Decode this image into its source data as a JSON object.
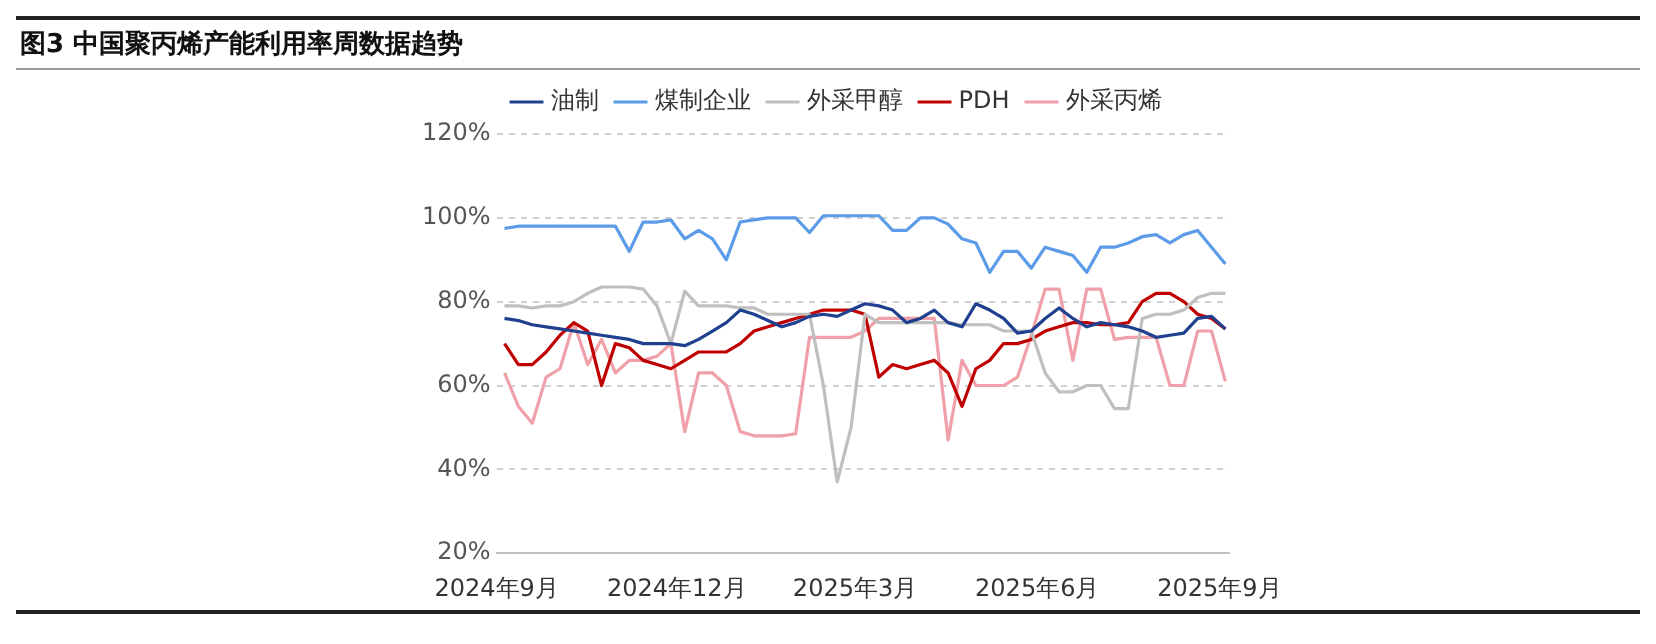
{
  "chart_data": {
    "type": "line",
    "title": "图3 中国聚丙烯产能利用率周数据趋势",
    "x": [
      "2024-09-05",
      "2024-09-12",
      "2024-09-19",
      "2024-09-26",
      "2024-10-03",
      "2024-10-10",
      "2024-10-17",
      "2024-10-24",
      "2024-10-31",
      "2024-11-07",
      "2024-11-14",
      "2024-11-21",
      "2024-11-28",
      "2024-12-05",
      "2024-12-12",
      "2024-12-19",
      "2024-12-26",
      "2025-01-02",
      "2025-01-09",
      "2025-01-16",
      "2025-01-23",
      "2025-01-30",
      "2025-02-06",
      "2025-02-13",
      "2025-02-20",
      "2025-02-27",
      "2025-03-06",
      "2025-03-13",
      "2025-03-20",
      "2025-03-27",
      "2025-04-03",
      "2025-04-10",
      "2025-04-17",
      "2025-04-24",
      "2025-05-01",
      "2025-05-08",
      "2025-05-15",
      "2025-05-22",
      "2025-05-29",
      "2025-06-05",
      "2025-06-12",
      "2025-06-19",
      "2025-06-26",
      "2025-07-03",
      "2025-07-10",
      "2025-07-17",
      "2025-07-24",
      "2025-07-31",
      "2025-08-07",
      "2025-08-14",
      "2025-08-21",
      "2025-08-28",
      "2025-09-04"
    ],
    "series": [
      {
        "name": "油制",
        "color": "#1f3f8f",
        "values": [
          76,
          75.5,
          74.5,
          74,
          73.5,
          73,
          72.5,
          72,
          71.5,
          71,
          70,
          70,
          70,
          69.5,
          71,
          73,
          75,
          78,
          77,
          75.5,
          74,
          75,
          76.5,
          77,
          76.5,
          78,
          79.5,
          79,
          78,
          75,
          76,
          78,
          75,
          74,
          79.5,
          78,
          76,
          72.5,
          73,
          76,
          78.5,
          76,
          74,
          75,
          74.5,
          74,
          73,
          71.5,
          72,
          72.5,
          76,
          76.5,
          73.5
        ]
      },
      {
        "name": "煤制企业",
        "color": "#5b9be8",
        "values": [
          97.5,
          98,
          98,
          98,
          98,
          98,
          98,
          98,
          98,
          92,
          99,
          99,
          99.5,
          95,
          97,
          95,
          90,
          99,
          99.5,
          100,
          100,
          100,
          96.5,
          100.5,
          100.5,
          100.5,
          100.5,
          100.5,
          97,
          97,
          100,
          100,
          98.5,
          95,
          94,
          87,
          92,
          92,
          88,
          93,
          92,
          91,
          87,
          93,
          93,
          94,
          95.5,
          96,
          94,
          96,
          97,
          93,
          89
        ]
      },
      {
        "name": "外采甲醇",
        "color": "#bfbfbf",
        "values": [
          79,
          79,
          78.5,
          79,
          79,
          80,
          82,
          83.5,
          83.5,
          83.5,
          83,
          79,
          70,
          82.5,
          79,
          79,
          79,
          78.5,
          78.5,
          77,
          77,
          77,
          77,
          60,
          37,
          50,
          77,
          75,
          75,
          75,
          75,
          75,
          75,
          74.5,
          74.5,
          74.5,
          73,
          73,
          73,
          63,
          58.5,
          58.5,
          60,
          60,
          54.5,
          54.5,
          76,
          77,
          77,
          78,
          81,
          82,
          82
        ]
      },
      {
        "name": "PDH",
        "color": "#c00000",
        "values": [
          70,
          65,
          65,
          68,
          72,
          75,
          73,
          60,
          70,
          69,
          66,
          65,
          64,
          66,
          68,
          68,
          68,
          70,
          73,
          74,
          75,
          76,
          77,
          78,
          78,
          78,
          77,
          62,
          65,
          64,
          65,
          66,
          63,
          55,
          64,
          66,
          70,
          70,
          71,
          73,
          74,
          75,
          75,
          74.5,
          74.5,
          75,
          80,
          82,
          82,
          80,
          77,
          76,
          73.5
        ]
      },
      {
        "name": "外采丙烯",
        "color": "#f0a0a8",
        "values": [
          63,
          55,
          51,
          62,
          64,
          75,
          65,
          71,
          63,
          66,
          66,
          67,
          70,
          49,
          63,
          63,
          60,
          49,
          48,
          48,
          48,
          48.5,
          71.5,
          71.5,
          71.5,
          71.5,
          73,
          76,
          76,
          76,
          76,
          76,
          47,
          66,
          60,
          60,
          60,
          62,
          72,
          83,
          83,
          66,
          83,
          83,
          71,
          71.5,
          71.5,
          71.5,
          60,
          60,
          73,
          73,
          61
        ]
      }
    ],
    "xlim": [
      "2024-09-01",
      "2025-09-06"
    ],
    "xticks": [
      {
        "value": "2024-09-01",
        "label": "2024年9月"
      },
      {
        "value": "2024-12-01",
        "label": "2024年12月"
      },
      {
        "value": "2025-03-01",
        "label": "2025年3月"
      },
      {
        "value": "2025-06-01",
        "label": "2025年6月"
      },
      {
        "value": "2025-09-01",
        "label": "2025年9月"
      }
    ],
    "ylim": [
      20,
      120
    ],
    "yticks": [
      {
        "value": 20,
        "label": "20%"
      },
      {
        "value": 40,
        "label": "40%"
      },
      {
        "value": 60,
        "label": "60%"
      },
      {
        "value": 80,
        "label": "80%"
      },
      {
        "value": 100,
        "label": "100%"
      },
      {
        "value": 120,
        "label": "120%"
      }
    ],
    "grid": "y",
    "legend": "top",
    "marker": "none",
    "line_style": "solid"
  }
}
